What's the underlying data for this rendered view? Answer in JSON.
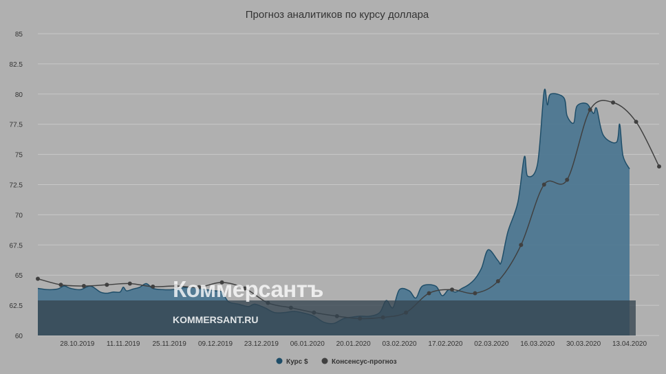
{
  "chart_data": {
    "type": "area",
    "title": "Прогноз аналитиков по курсу доллара",
    "xlabel": "",
    "ylabel": "",
    "ylim": [
      60,
      85
    ],
    "y_ticks": [
      "60",
      "62.5",
      "65",
      "67.5",
      "70",
      "72.5",
      "75",
      "77.5",
      "80",
      "82.5",
      "85"
    ],
    "x_tick_labels": [
      "28.10.2019",
      "11.11.2019",
      "25.11.2019",
      "09.12.2019",
      "23.12.2019",
      "06.01.2020",
      "20.01.2020",
      "03.02.2020",
      "17.02.2020",
      "02.03.2020",
      "16.03.2020",
      "30.03.2020",
      "13.04.2020"
    ],
    "grid": true,
    "legend_position": "bottom-center",
    "series": [
      {
        "name": "Курс $",
        "type": "area",
        "color": "#4a7590",
        "line_color": "#1e4d68",
        "points": [
          [
            "2019-10-16",
            63.9
          ],
          [
            "2019-10-19",
            63.8
          ],
          [
            "2019-10-22",
            63.85
          ],
          [
            "2019-10-24",
            64.1
          ],
          [
            "2019-10-26",
            63.9
          ],
          [
            "2019-10-29",
            63.8
          ],
          [
            "2019-11-01",
            64.1
          ],
          [
            "2019-11-04",
            63.6
          ],
          [
            "2019-11-06",
            63.5
          ],
          [
            "2019-11-08",
            63.6
          ],
          [
            "2019-11-10",
            63.6
          ],
          [
            "2019-11-11",
            64.0
          ],
          [
            "2019-11-12",
            63.7
          ],
          [
            "2019-11-14",
            63.85
          ],
          [
            "2019-11-16",
            64.0
          ],
          [
            "2019-11-18",
            64.3
          ],
          [
            "2019-11-20",
            63.9
          ],
          [
            "2019-11-23",
            63.8
          ],
          [
            "2019-11-26",
            63.8
          ],
          [
            "2019-11-29",
            63.95
          ],
          [
            "2019-12-02",
            64.0
          ],
          [
            "2019-12-04",
            63.9
          ],
          [
            "2019-12-06",
            63.8
          ],
          [
            "2019-12-09",
            63.7
          ],
          [
            "2019-12-11",
            63.6
          ],
          [
            "2019-12-13",
            62.8
          ],
          [
            "2019-12-16",
            62.6
          ],
          [
            "2019-12-19",
            62.4
          ],
          [
            "2019-12-21",
            62.6
          ],
          [
            "2019-12-24",
            62.3
          ],
          [
            "2019-12-27",
            61.9
          ],
          [
            "2019-12-30",
            61.9
          ],
          [
            "2020-01-02",
            62.0
          ],
          [
            "2020-01-05",
            61.85
          ],
          [
            "2020-01-08",
            61.6
          ],
          [
            "2020-01-11",
            61.1
          ],
          [
            "2020-01-14",
            61.0
          ],
          [
            "2020-01-17",
            61.4
          ],
          [
            "2020-01-19",
            61.5
          ],
          [
            "2020-01-22",
            61.6
          ],
          [
            "2020-01-25",
            61.6
          ],
          [
            "2020-01-28",
            61.9
          ],
          [
            "2020-01-30",
            62.9
          ],
          [
            "2020-02-01",
            62.3
          ],
          [
            "2020-02-03",
            63.8
          ],
          [
            "2020-02-06",
            63.7
          ],
          [
            "2020-02-08",
            63.1
          ],
          [
            "2020-02-10",
            64.1
          ],
          [
            "2020-02-14",
            64.1
          ],
          [
            "2020-02-16",
            63.3
          ],
          [
            "2020-02-18",
            63.8
          ],
          [
            "2020-02-20",
            63.6
          ],
          [
            "2020-02-22",
            63.9
          ],
          [
            "2020-02-24",
            64.2
          ],
          [
            "2020-02-26",
            64.7
          ],
          [
            "2020-02-28",
            65.6
          ],
          [
            "2020-03-01",
            67.1
          ],
          [
            "2020-03-04",
            66.2
          ],
          [
            "2020-03-05",
            66.1
          ],
          [
            "2020-03-07",
            68.6
          ],
          [
            "2020-03-10",
            71.0
          ],
          [
            "2020-03-12",
            74.8
          ],
          [
            "2020-03-13",
            73.2
          ],
          [
            "2020-03-16",
            74.2
          ],
          [
            "2020-03-18",
            80.2
          ],
          [
            "2020-03-19",
            79.1
          ],
          [
            "2020-03-20",
            80.0
          ],
          [
            "2020-03-24",
            79.7
          ],
          [
            "2020-03-25",
            78.2
          ],
          [
            "2020-03-27",
            77.6
          ],
          [
            "2020-03-28",
            79.0
          ],
          [
            "2020-03-31",
            79.2
          ],
          [
            "2020-04-02",
            78.4
          ],
          [
            "2020-04-03",
            78.8
          ],
          [
            "2020-04-05",
            76.6
          ],
          [
            "2020-04-09",
            76.0
          ],
          [
            "2020-04-10",
            77.5
          ],
          [
            "2020-04-11",
            74.9
          ],
          [
            "2020-04-13",
            73.8
          ]
        ]
      },
      {
        "name": "Консенсус-прогноз",
        "type": "line",
        "color": "#404040",
        "points": [
          [
            "2019-10-16",
            64.7
          ],
          [
            "2019-10-23",
            64.2
          ],
          [
            "2019-10-30",
            64.1
          ],
          [
            "2019-11-06",
            64.2
          ],
          [
            "2019-11-13",
            64.3
          ],
          [
            "2019-11-20",
            64.05
          ],
          [
            "2019-11-27",
            64.1
          ],
          [
            "2019-12-04",
            64.0
          ],
          [
            "2019-12-11",
            64.4
          ],
          [
            "2019-12-18",
            63.9
          ],
          [
            "2019-12-25",
            62.7
          ],
          [
            "2020-01-01",
            62.3
          ],
          [
            "2020-01-08",
            61.9
          ],
          [
            "2020-01-15",
            61.6
          ],
          [
            "2020-01-22",
            61.4
          ],
          [
            "2020-01-29",
            61.5
          ],
          [
            "2020-02-05",
            61.9
          ],
          [
            "2020-02-12",
            63.5
          ],
          [
            "2020-02-19",
            63.8
          ],
          [
            "2020-02-26",
            63.5
          ],
          [
            "2020-03-04",
            64.5
          ],
          [
            "2020-03-11",
            67.5
          ],
          [
            "2020-03-18",
            72.5
          ],
          [
            "2020-03-25",
            72.9
          ],
          [
            "2020-04-01",
            78.7
          ],
          [
            "2020-04-08",
            79.3
          ],
          [
            "2020-04-15",
            77.7
          ],
          [
            "2020-04-22",
            74.0
          ]
        ]
      }
    ]
  },
  "watermark": {
    "logo": "Коммерсантъ",
    "url": "KOMMERSANT.RU"
  }
}
